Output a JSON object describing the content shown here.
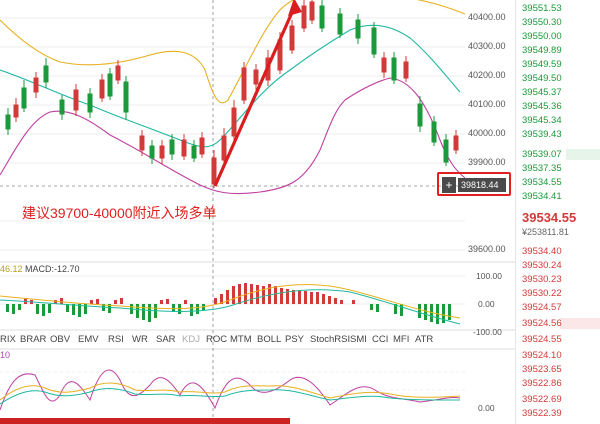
{
  "price_axis": [
    "40400.00",
    "40300.00",
    "40200.00",
    "40100.00",
    "40000.00",
    "39900.00",
    "39600.00"
  ],
  "order_book": {
    "asks": [
      "39551.53",
      "39550.30",
      "39550.00",
      "39549.89",
      "39549.59",
      "39549.50",
      "39545.37",
      "39545.36",
      "39545.34",
      "39539.43",
      "39539.07",
      "39537.35",
      "39534.55",
      "39534.41"
    ],
    "last_price": "39534.55",
    "volume": "¥253811.81",
    "bids": [
      "39534.40",
      "39530.24",
      "39530.23",
      "39530.22",
      "39524.57",
      "39524.56",
      "39524.55",
      "39524.10",
      "39523.65",
      "39522.86",
      "39522.69",
      "39522.39"
    ]
  },
  "crosshair": {
    "price": "39818.44",
    "plus": "+"
  },
  "annotation": "建议39700-40000附近入场多单",
  "macd": {
    "prefix_value": "46.12",
    "label": "MACD:-12.70",
    "axis": [
      "100.00",
      "0.00",
      "-100.00"
    ]
  },
  "kdj": {
    "prefix_value": "10",
    "axis": [
      "0.00"
    ]
  },
  "indicator_tabs": [
    "RIX",
    "BRAR",
    "OBV",
    "EMV",
    "RSI",
    "WR",
    "SAR",
    "KDJ",
    "ROC",
    "MTM",
    "BOLL",
    "PSY",
    "StochRSI",
    "SMI",
    "CCI",
    "MFI",
    "ATR"
  ],
  "colors": {
    "up": "#1a9a3a",
    "down": "#d23a3a",
    "boll_upper": "#e8b020",
    "boll_mid": "#20b8a0",
    "boll_lower": "#c040a0",
    "annotation": "#e02020"
  }
}
